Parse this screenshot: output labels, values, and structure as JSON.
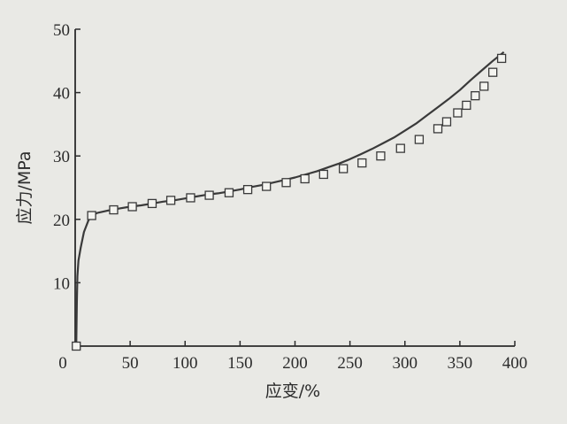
{
  "chart_data": {
    "type": "line",
    "title": "",
    "xlabel": "应变/%",
    "ylabel": "应力/MPa",
    "xlim": [
      0,
      400
    ],
    "ylim": [
      0,
      50
    ],
    "x_ticks": [
      "0",
      "50",
      "100",
      "150",
      "200",
      "250",
      "300",
      "350",
      "400"
    ],
    "y_ticks": [
      "10",
      "20",
      "30",
      "40",
      "50"
    ],
    "grid": false,
    "legend": "none",
    "colors": {
      "line": "#3a3a3a",
      "marker_edge": "#3a3a3a",
      "marker_fill": "#f4f4f0",
      "axis": "#2b2b2b",
      "background": "#e9e9e5"
    },
    "series": [
      {
        "marker": "square",
        "curve_x": [
          1,
          1.5,
          2,
          3,
          5,
          8,
          12,
          15,
          20,
          30,
          40,
          50,
          60,
          70,
          80,
          90,
          100,
          110,
          120,
          130,
          140,
          150,
          160,
          170,
          180,
          190,
          200,
          210,
          220,
          230,
          240,
          250,
          260,
          270,
          280,
          290,
          300,
          310,
          320,
          330,
          340,
          350,
          360,
          370,
          380,
          390
        ],
        "curve_y": [
          0,
          7,
          11,
          13.5,
          15.5,
          18,
          19.8,
          20.6,
          21.0,
          21.4,
          21.7,
          22.0,
          22.2,
          22.5,
          22.8,
          23.0,
          23.3,
          23.6,
          23.9,
          24.1,
          24.4,
          24.7,
          25.1,
          25.4,
          25.8,
          26.2,
          26.6,
          27.1,
          27.6,
          28.2,
          28.8,
          29.5,
          30.3,
          31.1,
          32.0,
          32.9,
          34.0,
          35.1,
          36.4,
          37.7,
          39.0,
          40.4,
          42.0,
          43.5,
          45.0,
          46.4
        ],
        "marker_x": [
          1,
          15,
          35,
          52,
          70,
          87,
          105,
          122,
          140,
          157,
          174,
          192,
          209,
          226,
          244,
          261,
          278,
          296,
          313,
          330,
          338,
          348,
          356,
          364,
          372,
          380,
          388
        ],
        "marker_y": [
          0,
          20.6,
          21.5,
          22.0,
          22.5,
          23.0,
          23.4,
          23.8,
          24.2,
          24.7,
          25.2,
          25.8,
          26.4,
          27.1,
          28.0,
          28.9,
          30.0,
          31.2,
          32.6,
          34.3,
          35.4,
          36.8,
          38.0,
          39.5,
          41.0,
          43.2,
          45.4
        ]
      }
    ]
  }
}
